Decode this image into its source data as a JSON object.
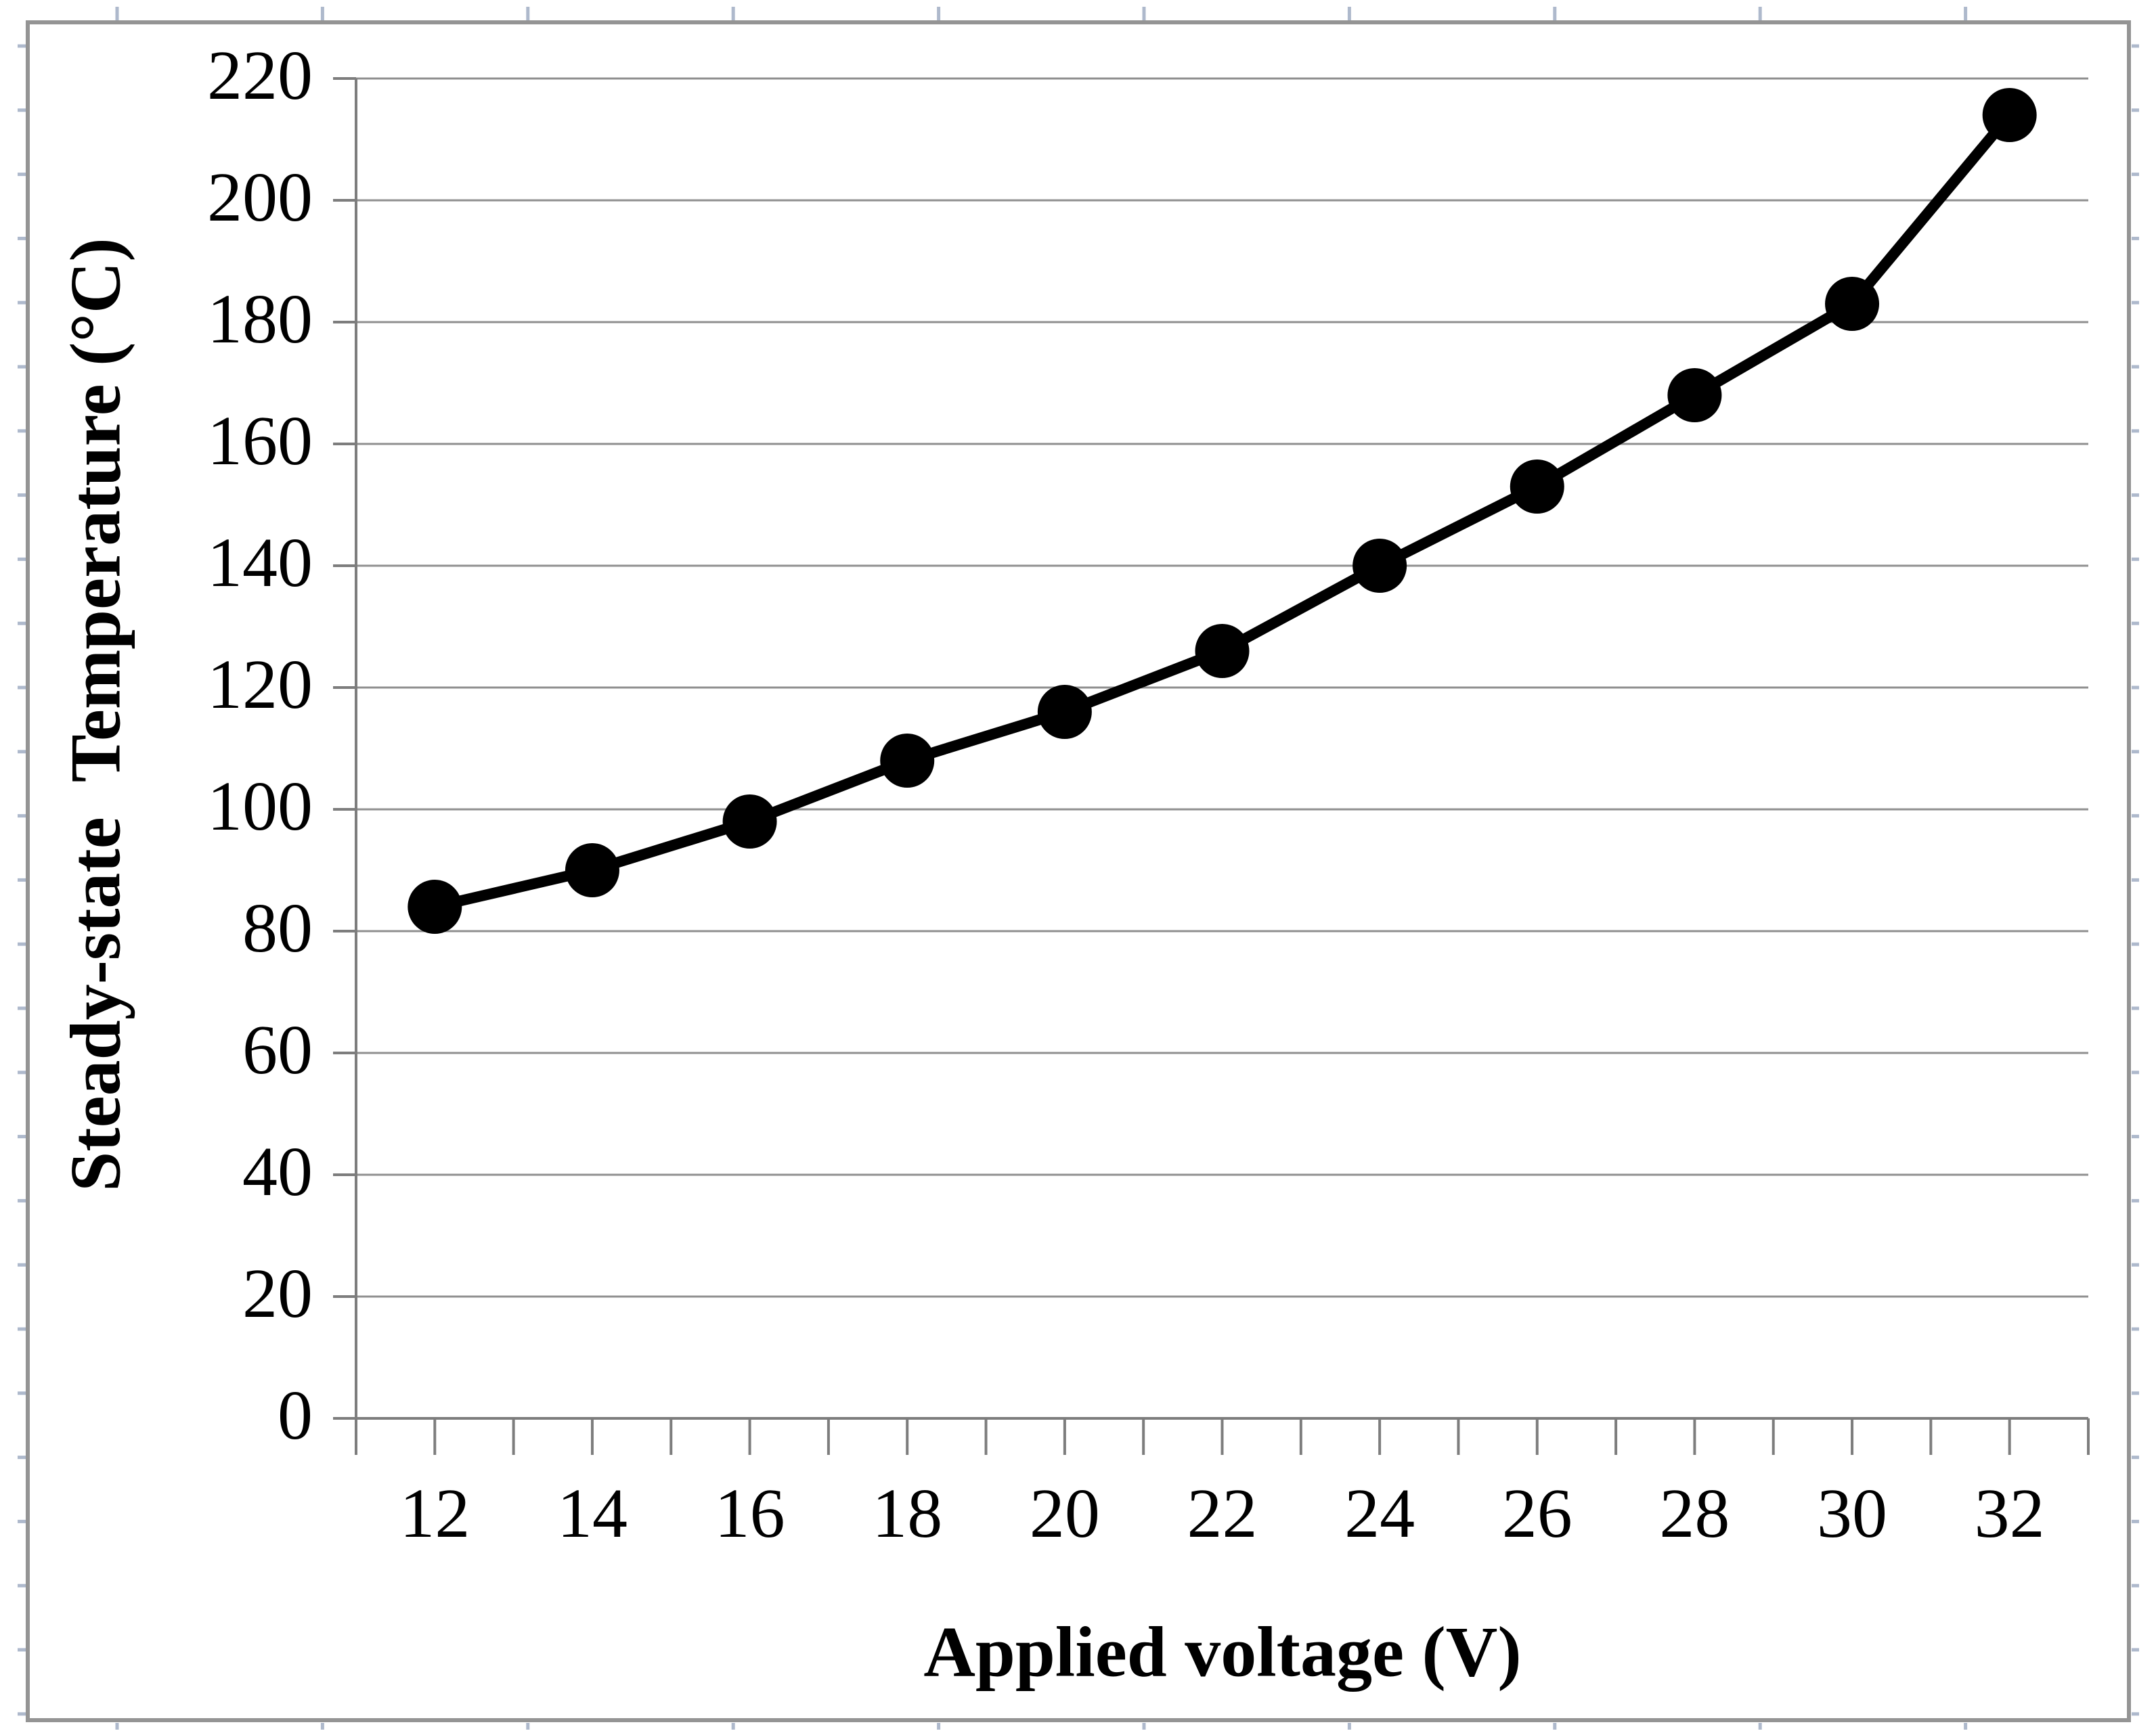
{
  "chart_data": {
    "type": "line",
    "title": "",
    "xlabel": "Applied voltage (V)",
    "ylabel": "Steady-state  Temperature (°C)",
    "categories": [
      12,
      14,
      16,
      18,
      20,
      22,
      24,
      26,
      28,
      30,
      32
    ],
    "xtick_labels": [
      "12",
      "14",
      "16",
      "18",
      "20",
      "22",
      "24",
      "26",
      "28",
      "30",
      "32"
    ],
    "values": [
      84,
      90,
      98,
      108,
      116,
      126,
      140,
      153,
      168,
      183,
      214
    ],
    "ylim": [
      0,
      220
    ],
    "ytick_step": 20,
    "ytick_labels": [
      "0",
      "20",
      "40",
      "60",
      "80",
      "100",
      "120",
      "140",
      "160",
      "180",
      "200",
      "220"
    ],
    "grid": "horizontal-only",
    "legend": "none",
    "marker": "filled-black-circle",
    "colors": {
      "series_line": "#000000",
      "marker_fill": "#000000",
      "gridline": "#8f8f8f",
      "axis_line": "#7d7d7d",
      "chart_border": "#949494",
      "cell_tick": "#aeb9cc",
      "label_text": "#000000",
      "background": "#ffffff"
    }
  }
}
